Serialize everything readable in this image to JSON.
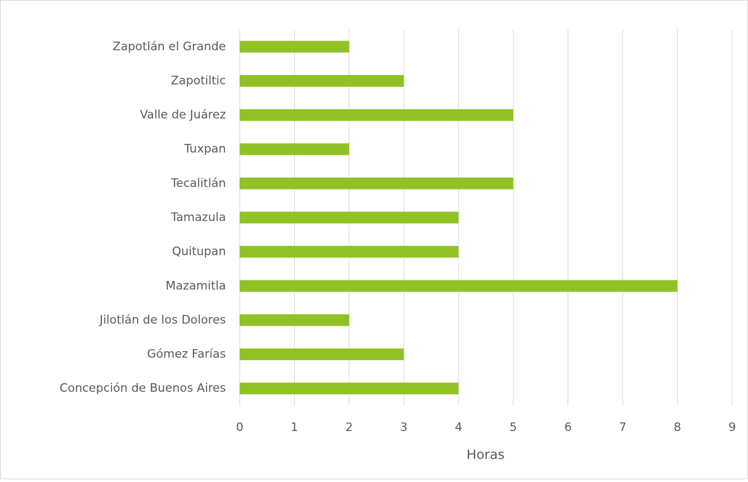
{
  "chart_data": {
    "type": "barh",
    "categories": [
      "Zapotlán el Grande",
      "Zapotiltic",
      "Valle de Juárez",
      "Tuxpan",
      "Tecalitlán",
      "Tamazula",
      "Quitupan",
      "Mazamitla",
      "Jilotlán de los Dolores",
      "Gómez Farías",
      "Concepción de Buenos Aires"
    ],
    "values": [
      2,
      3,
      5,
      2,
      5,
      4,
      4,
      8,
      2,
      3,
      4
    ],
    "color": "#90c226",
    "xlabel": "Horas",
    "xlim": [
      0,
      9
    ],
    "xticks": [
      0,
      1,
      2,
      3,
      4,
      5,
      6,
      7,
      8,
      9
    ],
    "grid": true
  }
}
